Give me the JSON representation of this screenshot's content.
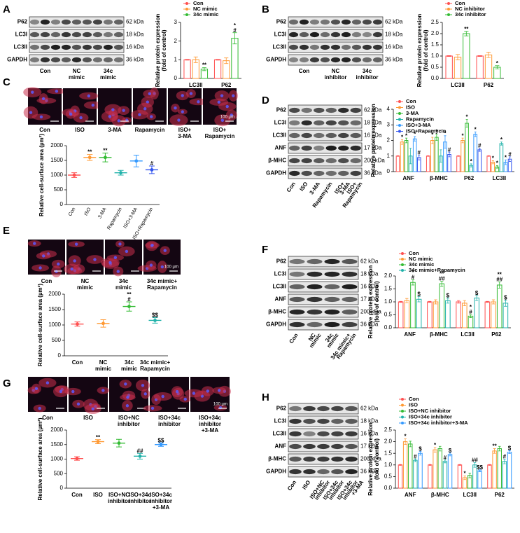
{
  "blots": [
    {
      "letter": "A",
      "rows": [
        "P62",
        "LC3I",
        "LC3II",
        "GAPDH"
      ],
      "sizes": [
        "62 kDa",
        "18 kDa",
        "16 kDa",
        "36 kDa"
      ],
      "lanes": [
        [
          "Con"
        ],
        [
          "NC",
          "mimic"
        ],
        [
          "34c",
          "mimic"
        ]
      ]
    },
    {
      "letter": "B",
      "rows": [
        "P62",
        "LC3I",
        "LC3II",
        "GAPDH"
      ],
      "sizes": [
        "62 kDa",
        "18 kDa",
        "16 kDa",
        "36 kDa"
      ],
      "lanes": [
        [
          "Con"
        ],
        [
          "NC",
          "inhibitor"
        ],
        [
          "34c",
          "inhibitor"
        ]
      ]
    },
    {
      "letter": "D",
      "rows": [
        "P62",
        "LC3I",
        "LC3II",
        "ANF",
        "β-MHC",
        "GAPDH"
      ],
      "sizes": [
        "62 kDa",
        "18 kDa",
        "16 kDa",
        "17 kDa",
        "200 kDa",
        "36 kDa"
      ],
      "lanes": [
        [
          "Con"
        ],
        [
          "ISO"
        ],
        [
          "3-MA"
        ],
        [
          "Rapamycin"
        ],
        [
          "ISO+",
          "3-MA"
        ],
        [
          "ISO+",
          "Rapamycin"
        ]
      ]
    },
    {
      "letter": "F",
      "rows": [
        "P62",
        "LC3I",
        "LC3II",
        "ANF",
        "β-MHC",
        "GAPDH"
      ],
      "sizes": [
        "62 kDa",
        "18 kDa",
        "16 kDa",
        "17 kDa",
        "200 kDa",
        "36 kDa"
      ],
      "lanes": [
        [
          "Con"
        ],
        [
          "NC",
          "mimic"
        ],
        [
          "34c",
          "mimic"
        ],
        [
          "34c mimic+",
          "Rapamycin"
        ]
      ]
    },
    {
      "letter": "H",
      "rows": [
        "P62",
        "LC3I",
        "LC3II",
        "ANF",
        "β-MHC",
        "GAPDH"
      ],
      "sizes": [
        "62 kDa",
        "18 kDa",
        "16 kDa",
        "17 kDa",
        "200 kDa",
        "36 kDa"
      ],
      "lanes": [
        [
          "Con"
        ],
        [
          "ISO"
        ],
        [
          "ISO+NC",
          "inhibitor"
        ],
        [
          "ISO+34c",
          "inhibitor"
        ],
        [
          "ISO+34c",
          "inhibitor",
          "+3-MA"
        ]
      ]
    }
  ],
  "images": [
    {
      "letter": "C",
      "scale": "100 µm",
      "labels": [
        [
          "Con"
        ],
        [
          "ISO"
        ],
        [
          "3-MA"
        ],
        [
          "Rapamycin"
        ],
        [
          "ISO+",
          "3-MA"
        ],
        [
          "ISO+",
          "Rapamycin"
        ]
      ]
    },
    {
      "letter": "E",
      "scale": "100 µm",
      "labels": [
        [
          "Con"
        ],
        [
          "NC",
          "mimic"
        ],
        [
          "34c",
          "mimic"
        ],
        [
          "34c mimic+",
          "Rapamycin"
        ]
      ]
    },
    {
      "letter": "G",
      "scale": "100 µm",
      "labels": [
        [
          "Con"
        ],
        [
          "ISO"
        ],
        [
          "ISO+NC",
          "inhibitor"
        ],
        [
          "ISO+34c",
          "inhibitor"
        ],
        [
          "ISO+34c",
          "inhibitor",
          "+3-MA"
        ]
      ]
    }
  ],
  "chart_data": [
    {
      "type": "bar",
      "ylabel": [
        "Relative protein expression",
        "(fold of control)"
      ],
      "categories": [
        "LC3II",
        "P62"
      ],
      "ylim": [
        0,
        3
      ],
      "yticks": [
        0,
        1,
        2,
        3
      ],
      "series": [
        {
          "name": "Con",
          "color": "#ff5050",
          "values": [
            1,
            1
          ],
          "errors": [
            0.02,
            0.02
          ],
          "annotations": [
            null,
            null
          ]
        },
        {
          "name": "NC mimic",
          "color": "#ff9933",
          "values": [
            1.0,
            0.95
          ],
          "errors": [
            0.15,
            0.15
          ],
          "annotations": [
            null,
            null
          ]
        },
        {
          "name": "34c mimic",
          "color": "#33bb33",
          "values": [
            0.5,
            2.15
          ],
          "errors": [
            0.08,
            0.3
          ],
          "annotations": [
            [
              "**"
            ],
            [
              "*",
              "#"
            ]
          ]
        }
      ]
    },
    {
      "type": "bar",
      "ylabel": [
        "Relative protein expression",
        "(fold of control)"
      ],
      "categories": [
        "LC3II",
        "P62"
      ],
      "ylim": [
        0,
        2.5
      ],
      "yticks": [
        {
          "value": 0,
          "label": "0.0"
        },
        0.5,
        {
          "value": 1,
          "label": "1.0"
        },
        1.5,
        {
          "value": 2,
          "label": "2.0"
        },
        2.5
      ],
      "series": [
        {
          "name": "Con",
          "color": "#ff5050",
          "values": [
            1,
            1
          ],
          "errors": [
            0.02,
            0.02
          ],
          "annotations": [
            null,
            null
          ]
        },
        {
          "name": "NC inhibitor",
          "color": "#ff9933",
          "values": [
            0.95,
            1.05
          ],
          "errors": [
            0.12,
            0.12
          ],
          "annotations": [
            null,
            null
          ]
        },
        {
          "name": "34c inhibitor",
          "color": "#33bb33",
          "values": [
            2.0,
            0.5
          ],
          "errors": [
            0.1,
            0.07
          ],
          "annotations": [
            [
              "**"
            ],
            [
              "*"
            ]
          ]
        }
      ]
    },
    {
      "type": "strip",
      "ylabel": [
        "Relative cell-surface area (µm²)"
      ],
      "categories": [
        [
          "Con"
        ],
        [
          "ISO"
        ],
        [
          "3-MA"
        ],
        [
          "Rapamycin"
        ],
        [
          "ISO+3-MA"
        ],
        [
          "ISO+Rapamycin"
        ]
      ],
      "values": [
        1000,
        1600,
        1600,
        1080,
        1480,
        1180
      ],
      "errors": [
        80,
        100,
        150,
        80,
        200,
        130
      ],
      "colors": [
        "#ff5050",
        "#ff9933",
        "#33bb33",
        "#20b2aa",
        "#3399ff",
        "#3355ee"
      ],
      "annotations": [
        null,
        [
          "**"
        ],
        [
          "**"
        ],
        null,
        null,
        [
          "#"
        ]
      ],
      "ylim": [
        0,
        2000
      ],
      "yticks": [
        0,
        500,
        1000,
        1500,
        2000
      ]
    },
    {
      "type": "bar",
      "ylabel": [
        "Relative protein expression"
      ],
      "categories": [
        "ANF",
        "β-MHC",
        "P62",
        "LC3II"
      ],
      "ylim": [
        0,
        4
      ],
      "yticks": [
        0,
        1,
        2,
        3,
        4
      ],
      "series": [
        {
          "name": "Con",
          "color": "#ff5050",
          "values": [
            1,
            1,
            1,
            1
          ],
          "errors": [
            0.02,
            0.02,
            0.02,
            0.02
          ],
          "annotations": [
            null,
            null,
            null,
            null
          ]
        },
        {
          "name": "ISO",
          "color": "#ff9933",
          "values": [
            1.9,
            2.0,
            2.0,
            0.6
          ],
          "errors": [
            0.15,
            0.2,
            0.15,
            0.1
          ],
          "annotations": [
            [
              "*"
            ],
            [
              "*"
            ],
            [
              "*"
            ],
            [
              "*"
            ]
          ]
        },
        {
          "name": "3-MA",
          "color": "#33bb33",
          "values": [
            2.0,
            2.2,
            3.1,
            0.3
          ],
          "errors": [
            0.15,
            0.2,
            0.25,
            0.08
          ],
          "annotations": [
            [
              "*"
            ],
            [
              "*"
            ],
            [
              "*"
            ],
            [
              "*"
            ]
          ]
        },
        {
          "name": "Rapamycin",
          "color": "#20b2aa",
          "values": [
            1.0,
            1.0,
            0.4,
            1.8
          ],
          "errors": [
            0.5,
            0.4,
            0.1,
            0.1
          ],
          "annotations": [
            null,
            null,
            [
              "*"
            ],
            [
              "*"
            ]
          ]
        },
        {
          "name": "ISO+3-MA",
          "color": "#3399ff",
          "values": [
            2.1,
            1.9,
            2.4,
            0.6
          ],
          "errors": [
            0.15,
            0.4,
            0.15,
            0.15
          ],
          "annotations": [
            [
              "*"
            ],
            [
              "*"
            ],
            [
              "*"
            ],
            [
              "*"
            ]
          ]
        },
        {
          "name": "ISO+Rapamycin",
          "color": "#3355ee",
          "values": [
            0.9,
            1.1,
            1.4,
            0.8
          ],
          "errors": [
            0.15,
            0.15,
            0.1,
            0.15
          ],
          "annotations": [
            [
              "#"
            ],
            [
              "#"
            ],
            [
              "#"
            ],
            [
              "#"
            ]
          ]
        }
      ]
    },
    {
      "type": "strip",
      "ylabel": [
        "Relative cell-surface area (µm²)"
      ],
      "categories": [
        [
          "Con"
        ],
        [
          "NC",
          "mimic"
        ],
        [
          "34c",
          "mimic"
        ],
        [
          "34c mimic+",
          "Rapamycin"
        ]
      ],
      "values": [
        1030,
        1050,
        1600,
        1150
      ],
      "errors": [
        70,
        120,
        150,
        90
      ],
      "colors": [
        "#ff5050",
        "#ff9933",
        "#33bb33",
        "#20b2aa"
      ],
      "annotations": [
        null,
        null,
        [
          "**",
          "#"
        ],
        [
          "$$"
        ]
      ],
      "ylim": [
        0,
        2000
      ],
      "yticks": [
        0,
        500,
        1000,
        1500,
        2000
      ]
    },
    {
      "type": "bar",
      "ylabel": [
        "Relative protein expression",
        "(fold of control)"
      ],
      "categories": [
        "ANF",
        "β-MHC",
        "LC3II",
        "P62"
      ],
      "ylim": [
        0,
        2
      ],
      "yticks": [
        {
          "value": 0,
          "label": "0.0"
        },
        0.5,
        {
          "value": 1,
          "label": "1.0"
        },
        1.5,
        {
          "value": 2,
          "label": "2.0"
        }
      ],
      "series": [
        {
          "name": "Con",
          "color": "#ff5050",
          "values": [
            1,
            1,
            1,
            1
          ],
          "errors": [
            0.02,
            0.02,
            0.05,
            0.02
          ],
          "annotations": [
            null,
            null,
            null,
            null
          ]
        },
        {
          "name": "NC mimic",
          "color": "#ff9933",
          "values": [
            1.05,
            1.0,
            0.95,
            1.0
          ],
          "errors": [
            0.08,
            0.08,
            0.1,
            0.08
          ],
          "annotations": [
            null,
            null,
            null,
            null
          ]
        },
        {
          "name": "34c mimic",
          "color": "#33bb33",
          "values": [
            1.75,
            1.7,
            0.45,
            1.65
          ],
          "errors": [
            0.1,
            0.1,
            0.06,
            0.12
          ],
          "annotations": [
            [
              "*",
              "#"
            ],
            [
              "**",
              "##"
            ],
            [
              "*",
              "#"
            ],
            [
              "**",
              "##"
            ]
          ]
        },
        {
          "name": "34c mimic+Rapamycin",
          "color": "#20b2aa",
          "values": [
            1.1,
            1.05,
            1.15,
            0.95
          ],
          "errors": [
            0.1,
            0.1,
            0.1,
            0.12
          ],
          "annotations": [
            [
              "$"
            ],
            [
              "$"
            ],
            [
              "$"
            ],
            [
              "$"
            ]
          ]
        }
      ]
    },
    {
      "type": "strip",
      "ylabel": [
        "Relative cell-surface area (µm²)"
      ],
      "categories": [
        [
          "Con"
        ],
        [
          "ISO"
        ],
        [
          "ISO+NC",
          "inhibitor"
        ],
        [
          "ISO+34c",
          "inhibitor"
        ],
        [
          "ISO+34c",
          "inhibitor",
          "+3-MA"
        ]
      ],
      "values": [
        1020,
        1600,
        1550,
        1100,
        1500
      ],
      "errors": [
        60,
        70,
        130,
        100,
        60
      ],
      "colors": [
        "#ff5050",
        "#ff9933",
        "#33bb33",
        "#20b2aa",
        "#3399ff"
      ],
      "annotations": [
        null,
        [
          "**"
        ],
        null,
        [
          "##"
        ],
        [
          "$$"
        ]
      ],
      "ylim": [
        0,
        2000
      ],
      "yticks": [
        0,
        500,
        1000,
        1500,
        2000
      ]
    },
    {
      "type": "bar",
      "ylabel": [
        "Relative protein expression",
        "(fold of control)"
      ],
      "categories": [
        "ANF",
        "β-MHC",
        "LC3II",
        "P62"
      ],
      "ylim": [
        0,
        2.5
      ],
      "yticks": [
        {
          "value": 0,
          "label": "0.0"
        },
        0.5,
        {
          "value": 1,
          "label": "1.0"
        },
        1.5,
        {
          "value": 2,
          "label": "2.0"
        },
        2.5
      ],
      "series": [
        {
          "name": "Con",
          "color": "#ff5050",
          "values": [
            1,
            1,
            1,
            1
          ],
          "errors": [
            0.02,
            0.02,
            0.02,
            0.02
          ],
          "annotations": [
            null,
            null,
            null,
            null
          ]
        },
        {
          "name": "ISO",
          "color": "#ff9933",
          "values": [
            2.0,
            1.65,
            0.45,
            1.6
          ],
          "errors": [
            0.12,
            0.1,
            0.08,
            0.1
          ],
          "annotations": [
            [
              "*"
            ],
            [
              "*"
            ],
            [
              "*"
            ],
            [
              "**"
            ]
          ]
        },
        {
          "name": "ISO+NC inhibitor",
          "color": "#33bb33",
          "values": [
            1.9,
            1.7,
            0.55,
            1.7
          ],
          "errors": [
            0.12,
            0.1,
            0.1,
            0.1
          ],
          "annotations": [
            null,
            null,
            null,
            null
          ]
        },
        {
          "name": "ISO+34c inhibitor",
          "color": "#20b2aa",
          "values": [
            1.2,
            1.15,
            1.0,
            1.15
          ],
          "errors": [
            0.06,
            0.06,
            0.1,
            0.1
          ],
          "annotations": [
            [
              "#"
            ],
            [
              "#"
            ],
            [
              "##"
            ],
            [
              "#"
            ]
          ]
        },
        {
          "name": "ISO+34c inhibitor+3-MA",
          "color": "#3399ff",
          "values": [
            1.5,
            1.45,
            0.75,
            1.55
          ],
          "errors": [
            0.08,
            0.06,
            0.04,
            0.06
          ],
          "annotations": [
            [
              "$"
            ],
            [
              "$"
            ],
            [
              "$$"
            ],
            [
              "$"
            ]
          ]
        }
      ]
    }
  ]
}
